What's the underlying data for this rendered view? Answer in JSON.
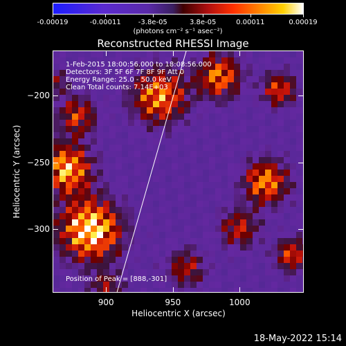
{
  "colorbar": {
    "tick_labels": [
      "-0.00019",
      "-0.00011",
      "-3.8e-05",
      "3.8e-05",
      "0.00011",
      "0.00019"
    ],
    "tick_values": [
      -0.00019,
      -0.00011,
      -3.8e-05,
      3.8e-05,
      0.00011,
      0.00019
    ],
    "range": [
      -0.00019,
      0.00019
    ],
    "units": "(photons cm⁻² s⁻¹ asec⁻²)"
  },
  "chart_data": {
    "type": "heatmap",
    "title": "Reconstructed RHESSI Image",
    "xlabel": "Heliocentric X (arcsec)",
    "ylabel": "Heliocentric Y (arcsec)",
    "xlim": [
      860,
      1048
    ],
    "ylim": [
      -348,
      -166
    ],
    "x_ticks": [
      900,
      950,
      1000
    ],
    "x_tick_labels": [
      "900",
      "950",
      "1000"
    ],
    "y_ticks": [
      -200,
      -250,
      -300
    ],
    "y_tick_labels": [
      "−200",
      "−250",
      "−300"
    ],
    "annotations": [
      "1-Feb-2015 18:00:56.000 to 18:08:56.000",
      "Detectors: 3F 5F 6F 7F 8F 9F Att 0",
      "Energy Range: 25.0 - 50.0 keV",
      "Clean     Total counts: 7.14E+03"
    ],
    "peak_label": "Position of Peak = [888,-301]",
    "peak": [
      888,
      -301
    ],
    "limb_line": {
      "points": [
        [
          908,
          -348
        ],
        [
          960,
          -166
        ]
      ]
    }
  },
  "footer": {
    "timestamp": "18-May-2022 15:14"
  },
  "colors": {
    "background": "#000000",
    "text": "#ffffff"
  }
}
